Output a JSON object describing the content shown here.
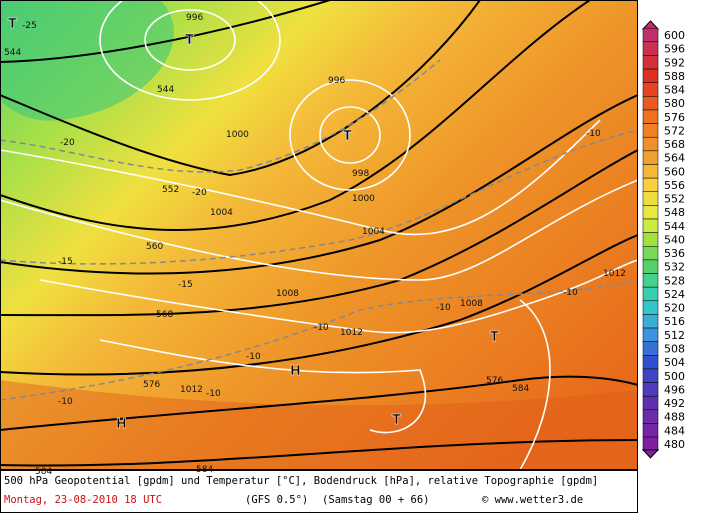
{
  "scale": {
    "labels": [
      600,
      596,
      592,
      588,
      584,
      580,
      576,
      572,
      568,
      564,
      560,
      556,
      552,
      548,
      544,
      540,
      536,
      532,
      528,
      524,
      520,
      516,
      512,
      508,
      504,
      500,
      496,
      492,
      488,
      484,
      480
    ]
  },
  "map_labels": [
    "T",
    "-25",
    "996",
    "T",
    "544",
    "544",
    "-20",
    "1000",
    "996",
    "T",
    "998",
    "1000",
    "552",
    "-20",
    "1004",
    "1004",
    "560",
    "-15",
    "-15",
    "1008",
    "568",
    "-10",
    "1008",
    "-10",
    "1012",
    "-10",
    "H",
    "576",
    "1012",
    "-10",
    "-10",
    "H",
    "T",
    "T",
    "584",
    "584",
    "584",
    "1012",
    "-10",
    "-10",
    "576"
  ],
  "caption": {
    "line1": "500 hPa Geopotential [gpdm] und Temperatur [°C], Bodendruck [hPa], relative Topographie [gpdm]",
    "date": "Montag, 23-08-2010  18 UTC",
    "model": "(GFS 0.5°)",
    "run": "(Samstag 00 + 66)",
    "credit": "© www.wetter3.de"
  }
}
